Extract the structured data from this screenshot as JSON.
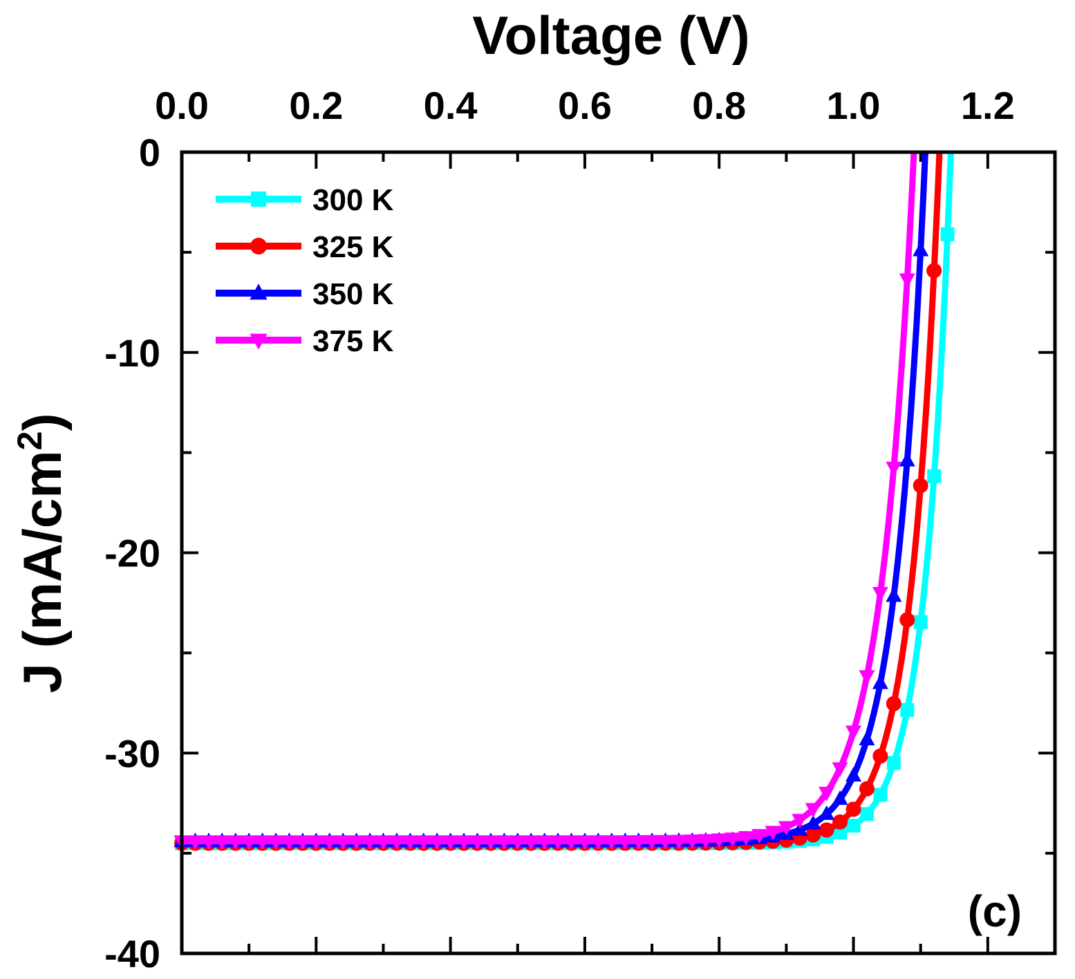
{
  "chart_data": {
    "type": "line",
    "title": "",
    "panel_label": "(c)",
    "xlabel": "Voltage (V)",
    "ylabel_main": "J (mA/cm",
    "ylabel_sup": "2",
    "ylabel_close": ")",
    "xlim": [
      0.0,
      1.3
    ],
    "ylim": [
      -40,
      0
    ],
    "x_ticks": [
      0.0,
      0.2,
      0.4,
      0.6,
      0.8,
      1.0,
      1.2
    ],
    "x_tick_labels": [
      "0.0",
      "0.2",
      "0.4",
      "0.6",
      "0.8",
      "1.0",
      "1.2"
    ],
    "y_ticks": [
      0,
      -10,
      -20,
      -30,
      -40
    ],
    "y_tick_labels": [
      "0",
      "-10",
      "-20",
      "-30",
      "-40"
    ],
    "x_axis_position": "top",
    "legend_position": "top-left",
    "grid": false,
    "series": [
      {
        "name": "300 K",
        "color": "#00FFFF",
        "marker": "square",
        "jsc": -34.5,
        "voc": 1.145,
        "voltage_scale": 0.0395
      },
      {
        "name": "325 K",
        "color": "#FF0000",
        "marker": "circle",
        "jsc": -34.5,
        "voc": 1.128,
        "voltage_scale": 0.0425
      },
      {
        "name": "350 K",
        "color": "#0000FF",
        "marker": "triangle-up",
        "jsc": -34.4,
        "voc": 1.107,
        "voltage_scale": 0.0455
      },
      {
        "name": "375 K",
        "color": "#FF00FF",
        "marker": "triangle-down",
        "jsc": -34.4,
        "voc": 1.09,
        "voltage_scale": 0.049
      }
    ]
  }
}
